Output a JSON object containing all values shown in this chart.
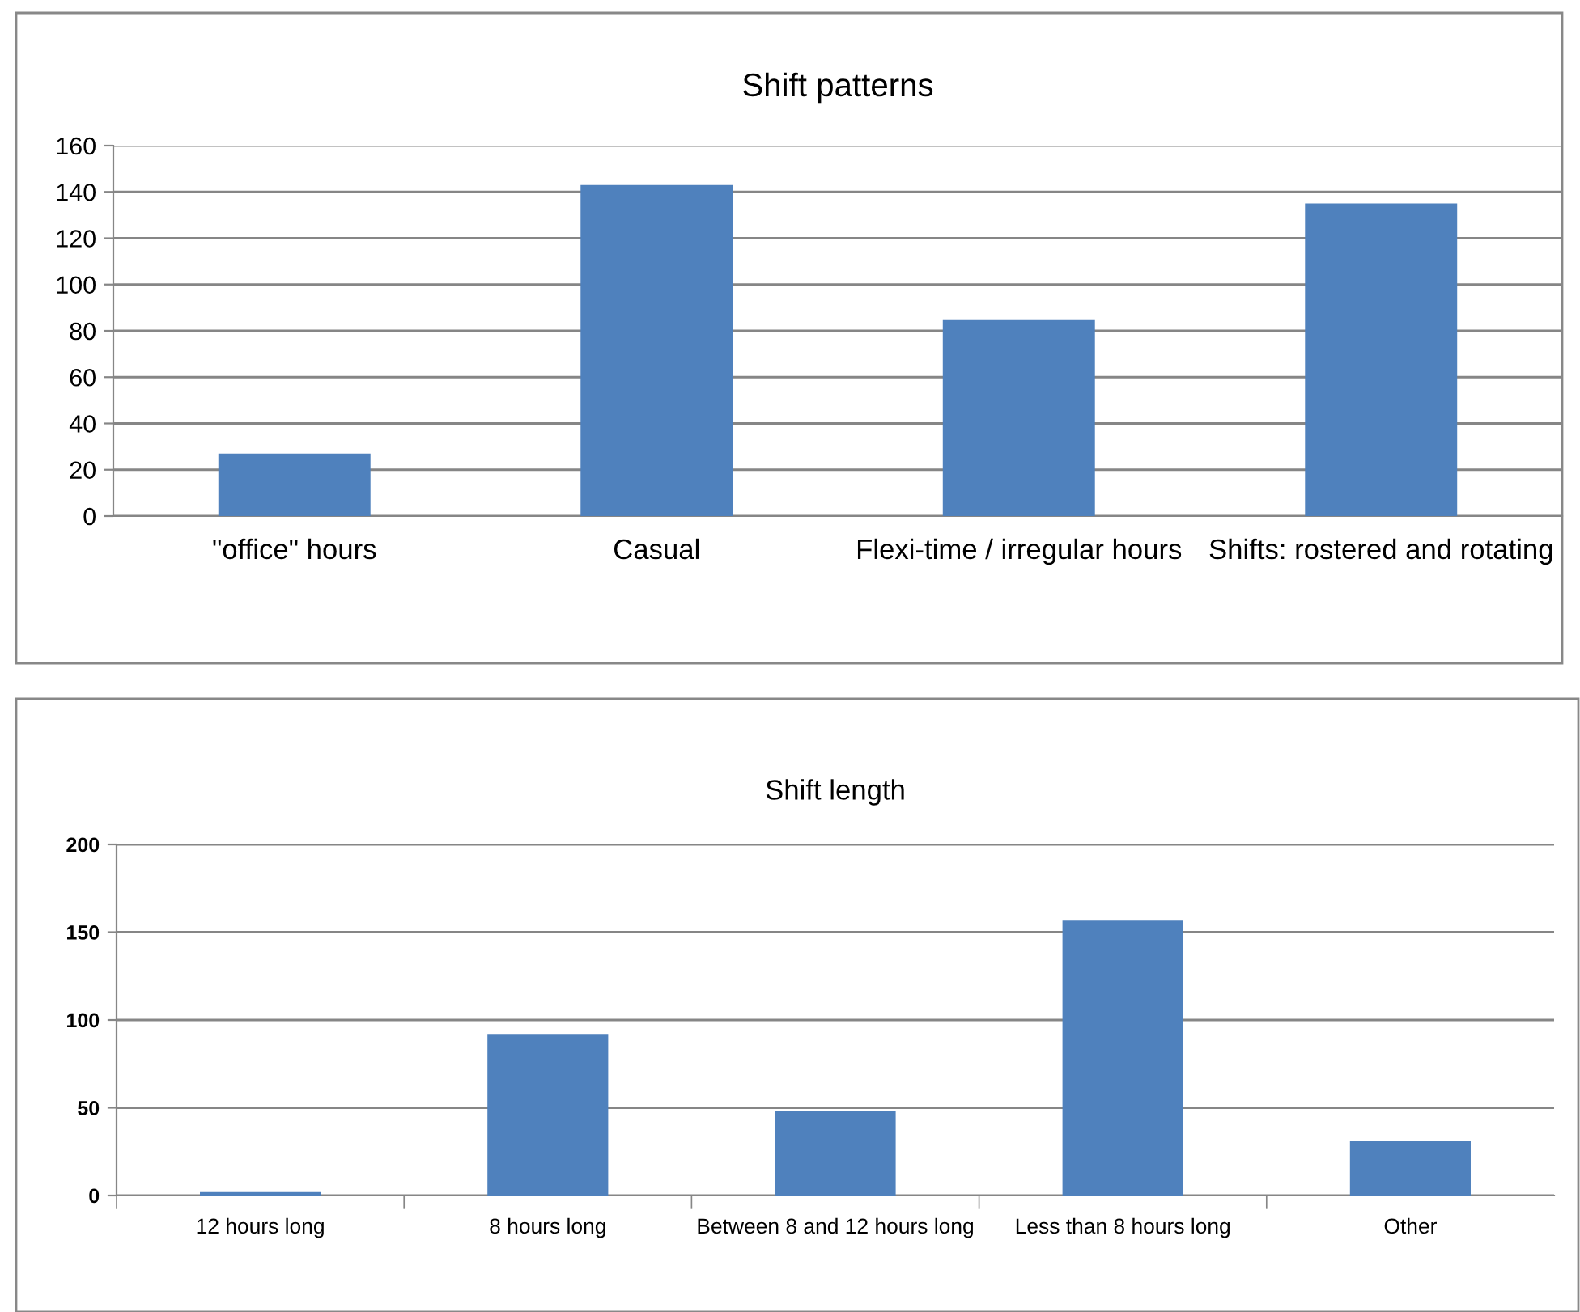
{
  "chart_data": [
    {
      "type": "bar",
      "title": "Shift patterns",
      "categories": [
        "\"office\" hours",
        "Casual",
        "Flexi-time / irregular hours",
        "Shifts: rostered and rotating"
      ],
      "values": [
        27,
        143,
        85,
        135
      ],
      "color": "#4f81bd",
      "ylim": [
        0,
        160
      ],
      "yticks": [
        0,
        20,
        40,
        60,
        80,
        100,
        120,
        140,
        160
      ],
      "grid": "y"
    },
    {
      "type": "bar",
      "title": "Shift length",
      "categories": [
        "12 hours long",
        "8 hours long",
        "Between 8 and 12 hours long",
        "Less than 8 hours long",
        "Other"
      ],
      "values": [
        2,
        92,
        48,
        157,
        31
      ],
      "color": "#4f81bd",
      "ylim": [
        0,
        200
      ],
      "yticks": [
        0,
        50,
        100,
        150,
        200
      ],
      "grid": "y"
    }
  ]
}
